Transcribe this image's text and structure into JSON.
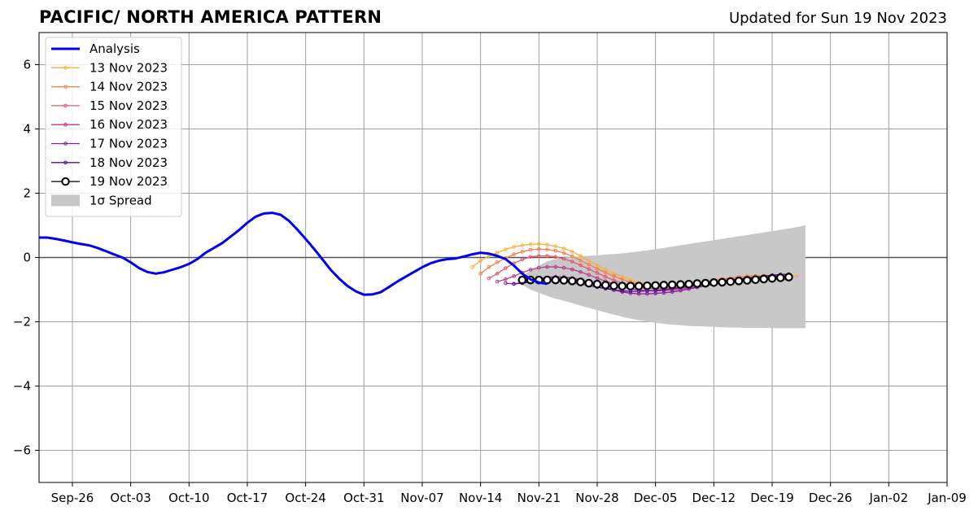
{
  "title": "PACIFIC/ NORTH AMERICA PATTERN",
  "subtitle": "Updated for Sun 19 Nov 2023",
  "colors": {
    "analysis": "#0000ee",
    "spread": "#c8c8c8",
    "grid": "#a0a0a0"
  },
  "chart_data": {
    "type": "line",
    "title": "PACIFIC/ NORTH AMERICA PATTERN",
    "xlabel": "",
    "ylabel": "",
    "x_range": [
      "2023-09-22",
      "2024-01-09"
    ],
    "ylim": [
      -7,
      7
    ],
    "grid": true,
    "legend_position": "top-left",
    "x_ticks": [
      "Sep-26",
      "Oct-03",
      "Oct-10",
      "Oct-17",
      "Oct-24",
      "Oct-31",
      "Nov-07",
      "Nov-14",
      "Nov-21",
      "Nov-28",
      "Dec-05",
      "Dec-12",
      "Dec-19",
      "Dec-26",
      "Jan-02",
      "Jan-09"
    ],
    "x_tick_dates": [
      "2023-09-26",
      "2023-10-03",
      "2023-10-10",
      "2023-10-17",
      "2023-10-24",
      "2023-10-31",
      "2023-11-07",
      "2023-11-14",
      "2023-11-21",
      "2023-11-28",
      "2023-12-05",
      "2023-12-12",
      "2023-12-19",
      "2023-12-26",
      "2024-01-02",
      "2024-01-09"
    ],
    "y_ticks": [
      "6",
      "4",
      "2",
      "0",
      "−2",
      "−4",
      "−6"
    ],
    "y_tick_values": [
      6,
      4,
      2,
      0,
      -2,
      -4,
      -6
    ],
    "legend": [
      {
        "label": "Analysis",
        "color": "#0000ee",
        "style": "thick"
      },
      {
        "label": "13 Nov 2023",
        "color": "#fbb13c",
        "style": "dot"
      },
      {
        "label": "14 Nov 2023",
        "color": "#f37e4f",
        "style": "dot"
      },
      {
        "label": "15 Nov 2023",
        "color": "#e05a6d",
        "style": "dot"
      },
      {
        "label": "16 Nov 2023",
        "color": "#b93a8a",
        "style": "dot"
      },
      {
        "label": "17 Nov 2023",
        "color": "#8e1a9e",
        "style": "dot"
      },
      {
        "label": "18 Nov 2023",
        "color": "#5a0ea0",
        "style": "dot"
      },
      {
        "label": "19 Nov 2023",
        "color": "#000000",
        "style": "circle"
      },
      {
        "label": "1σ Spread",
        "color": "#c8c8c8",
        "style": "patch"
      }
    ],
    "analysis": {
      "name": "Analysis",
      "start": "2023-09-22",
      "values": [
        0.62,
        0.62,
        0.58,
        0.53,
        0.47,
        0.42,
        0.38,
        0.3,
        0.2,
        0.1,
        0.0,
        -0.15,
        -0.33,
        -0.45,
        -0.5,
        -0.46,
        -0.38,
        -0.3,
        -0.2,
        -0.05,
        0.15,
        0.3,
        0.45,
        0.65,
        0.85,
        1.08,
        1.27,
        1.37,
        1.39,
        1.33,
        1.14,
        0.87,
        0.58,
        0.27,
        -0.05,
        -0.38,
        -0.65,
        -0.88,
        -1.05,
        -1.16,
        -1.15,
        -1.08,
        -0.92,
        -0.75,
        -0.6,
        -0.45,
        -0.3,
        -0.18,
        -0.1,
        -0.05,
        -0.03,
        0.03,
        0.1,
        0.15,
        0.12,
        0.05,
        -0.05,
        -0.25,
        -0.5,
        -0.68,
        -0.78,
        -0.82
      ]
    },
    "forecasts": [
      {
        "name": "13 Nov 2023",
        "start": "2023-11-13",
        "values": [
          -0.3,
          -0.1,
          0.05,
          0.15,
          0.25,
          0.33,
          0.38,
          0.41,
          0.42,
          0.4,
          0.35,
          0.28,
          0.18,
          0.05,
          -0.1,
          -0.25,
          -0.38,
          -0.5,
          -0.6,
          -0.7,
          -0.78,
          -0.83,
          -0.85,
          -0.85,
          -0.84,
          -0.82,
          -0.8,
          -0.78,
          -0.75,
          -0.72,
          -0.7,
          -0.67,
          -0.64,
          -0.61,
          -0.58,
          -0.56,
          -0.54,
          -0.55,
          -0.56,
          -0.58
        ]
      },
      {
        "name": "14 Nov 2023",
        "start": "2023-11-14",
        "values": [
          -0.5,
          -0.3,
          -0.15,
          -0.02,
          0.1,
          0.18,
          0.24,
          0.26,
          0.25,
          0.21,
          0.14,
          0.04,
          -0.09,
          -0.22,
          -0.35,
          -0.47,
          -0.58,
          -0.68,
          -0.77,
          -0.83,
          -0.87,
          -0.89,
          -0.89,
          -0.88,
          -0.86,
          -0.83,
          -0.79,
          -0.75,
          -0.71,
          -0.67,
          -0.64,
          -0.6,
          -0.58,
          -0.57,
          -0.58,
          -0.6,
          -0.62,
          -0.64
        ]
      },
      {
        "name": "15 Nov 2023",
        "start": "2023-11-15",
        "values": [
          -0.65,
          -0.5,
          -0.33,
          -0.18,
          -0.06,
          0.02,
          0.05,
          0.05,
          0.02,
          -0.04,
          -0.13,
          -0.24,
          -0.36,
          -0.48,
          -0.6,
          -0.71,
          -0.8,
          -0.88,
          -0.93,
          -0.96,
          -0.97,
          -0.96,
          -0.94,
          -0.91,
          -0.88,
          -0.84,
          -0.8,
          -0.76,
          -0.72,
          -0.69,
          -0.66,
          -0.64,
          -0.63,
          -0.63,
          -0.64,
          -0.65,
          -0.66
        ]
      },
      {
        "name": "16 Nov 2023",
        "start": "2023-11-16",
        "values": [
          -0.75,
          -0.68,
          -0.58,
          -0.47,
          -0.38,
          -0.32,
          -0.29,
          -0.29,
          -0.32,
          -0.37,
          -0.45,
          -0.54,
          -0.64,
          -0.74,
          -0.83,
          -0.91,
          -0.97,
          -1.01,
          -1.03,
          -1.04,
          -1.03,
          -1.01,
          -0.98,
          -0.94,
          -0.9,
          -0.86,
          -0.81,
          -0.77,
          -0.73,
          -0.7,
          -0.68,
          -0.66,
          -0.66,
          -0.67,
          -0.68,
          -0.69
        ]
      },
      {
        "name": "17 Nov 2023",
        "start": "2023-11-17",
        "values": [
          -0.8,
          -0.82,
          -0.78,
          -0.72,
          -0.66,
          -0.62,
          -0.6,
          -0.61,
          -0.64,
          -0.69,
          -0.76,
          -0.84,
          -0.93,
          -1.01,
          -1.07,
          -1.11,
          -1.13,
          -1.13,
          -1.12,
          -1.1,
          -1.07,
          -1.03,
          -0.98,
          -0.93,
          -0.88,
          -0.83,
          -0.78,
          -0.74,
          -0.7,
          -0.66,
          -0.63,
          -0.6,
          -0.58,
          -0.57,
          -0.56
        ]
      },
      {
        "name": "18 Nov 2023",
        "start": "2023-11-18",
        "values": [
          -0.82,
          -0.8,
          -0.76,
          -0.73,
          -0.72,
          -0.73,
          -0.75,
          -0.78,
          -0.82,
          -0.87,
          -0.92,
          -0.97,
          -1.01,
          -1.04,
          -1.05,
          -1.05,
          -1.04,
          -1.02,
          -1.0,
          -0.97,
          -0.94,
          -0.9,
          -0.86,
          -0.82,
          -0.78,
          -0.74,
          -0.7,
          -0.67,
          -0.64,
          -0.61,
          -0.58,
          -0.55,
          -0.53,
          -0.52
        ]
      },
      {
        "name": "19 Nov 2023",
        "start": "2023-11-19",
        "values": [
          -0.7,
          -0.7,
          -0.7,
          -0.7,
          -0.7,
          -0.71,
          -0.73,
          -0.76,
          -0.8,
          -0.83,
          -0.86,
          -0.88,
          -0.89,
          -0.89,
          -0.89,
          -0.88,
          -0.87,
          -0.86,
          -0.85,
          -0.84,
          -0.83,
          -0.81,
          -0.8,
          -0.78,
          -0.77,
          -0.75,
          -0.73,
          -0.71,
          -0.69,
          -0.67,
          -0.65,
          -0.63,
          -0.61
        ]
      }
    ],
    "spread": {
      "name": "1σ Spread",
      "start": "2023-11-19",
      "upper": [
        -0.6,
        -0.4,
        -0.25,
        -0.12,
        -0.05,
        0.0,
        0.02,
        0.04,
        0.05,
        0.07,
        0.09,
        0.11,
        0.13,
        0.16,
        0.19,
        0.22,
        0.26,
        0.3,
        0.34,
        0.38,
        0.42,
        0.46,
        0.5,
        0.54,
        0.58,
        0.62,
        0.66,
        0.7,
        0.74,
        0.78,
        0.82,
        0.86,
        0.9,
        0.95,
        1.0
      ],
      "lower": [
        -0.85,
        -1.0,
        -1.1,
        -1.2,
        -1.28,
        -1.35,
        -1.42,
        -1.5,
        -1.57,
        -1.64,
        -1.71,
        -1.78,
        -1.84,
        -1.9,
        -1.95,
        -1.99,
        -2.03,
        -2.06,
        -2.09,
        -2.11,
        -2.13,
        -2.14,
        -2.15,
        -2.16,
        -2.17,
        -2.18,
        -2.18,
        -2.19,
        -2.19,
        -2.19,
        -2.2,
        -2.2,
        -2.2,
        -2.2,
        -2.2
      ]
    }
  }
}
